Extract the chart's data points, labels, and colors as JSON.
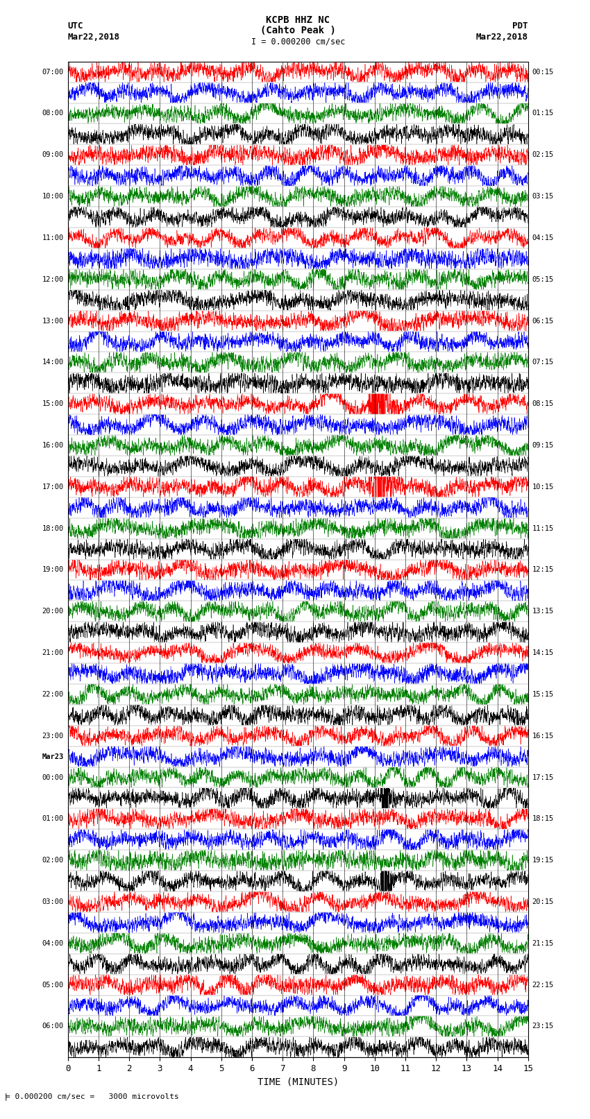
{
  "title_line1": "KCPB HHZ NC",
  "title_line2": "(Cahto Peak )",
  "title_scale": "I = 0.000200 cm/sec",
  "left_header_line1": "UTC",
  "left_header_line2": "Mar22,2018",
  "right_header_line1": "PDT",
  "right_header_line2": "Mar22,2018",
  "bottom_label": "TIME (MINUTES)",
  "bottom_note": "= 0.000200 cm/sec =   3000 microvolts",
  "xticks": [
    0,
    1,
    2,
    3,
    4,
    5,
    6,
    7,
    8,
    9,
    10,
    11,
    12,
    13,
    14,
    15
  ],
  "xlim": [
    0,
    15
  ],
  "num_rows": 48,
  "colors_cycle": [
    "red",
    "blue",
    "green",
    "black"
  ],
  "noise_amplitude": 0.42,
  "event_col_red": 10.1,
  "event_col_black": 10.3,
  "background_color": "white",
  "trace_linewidth": 0.4,
  "fig_width": 8.5,
  "fig_height": 16.13,
  "left_times": [
    "07:00",
    "08:00",
    "09:00",
    "10:00",
    "11:00",
    "12:00",
    "13:00",
    "14:00",
    "15:00",
    "16:00",
    "17:00",
    "18:00",
    "19:00",
    "20:00",
    "21:00",
    "22:00",
    "23:00",
    "Mar23",
    "00:00",
    "01:00",
    "02:00",
    "03:00",
    "04:00",
    "05:00",
    "06:00"
  ],
  "right_times": [
    "00:15",
    "01:15",
    "02:15",
    "03:15",
    "04:15",
    "05:15",
    "06:15",
    "07:15",
    "08:15",
    "09:15",
    "10:15",
    "11:15",
    "12:15",
    "13:15",
    "14:15",
    "15:15",
    "16:15",
    "17:15",
    "18:15",
    "19:15",
    "20:15",
    "21:15",
    "22:15",
    "23:15"
  ],
  "left_time_rows": [
    0,
    2,
    4,
    6,
    8,
    10,
    12,
    14,
    16,
    18,
    20,
    22,
    24,
    26,
    28,
    30,
    32,
    33,
    34,
    36,
    38,
    40,
    42,
    44,
    46
  ],
  "right_time_rows": [
    0,
    2,
    4,
    6,
    8,
    10,
    12,
    14,
    16,
    18,
    20,
    22,
    24,
    26,
    28,
    30,
    32,
    34,
    36,
    38,
    40,
    42,
    44,
    46
  ],
  "dpi": 100
}
